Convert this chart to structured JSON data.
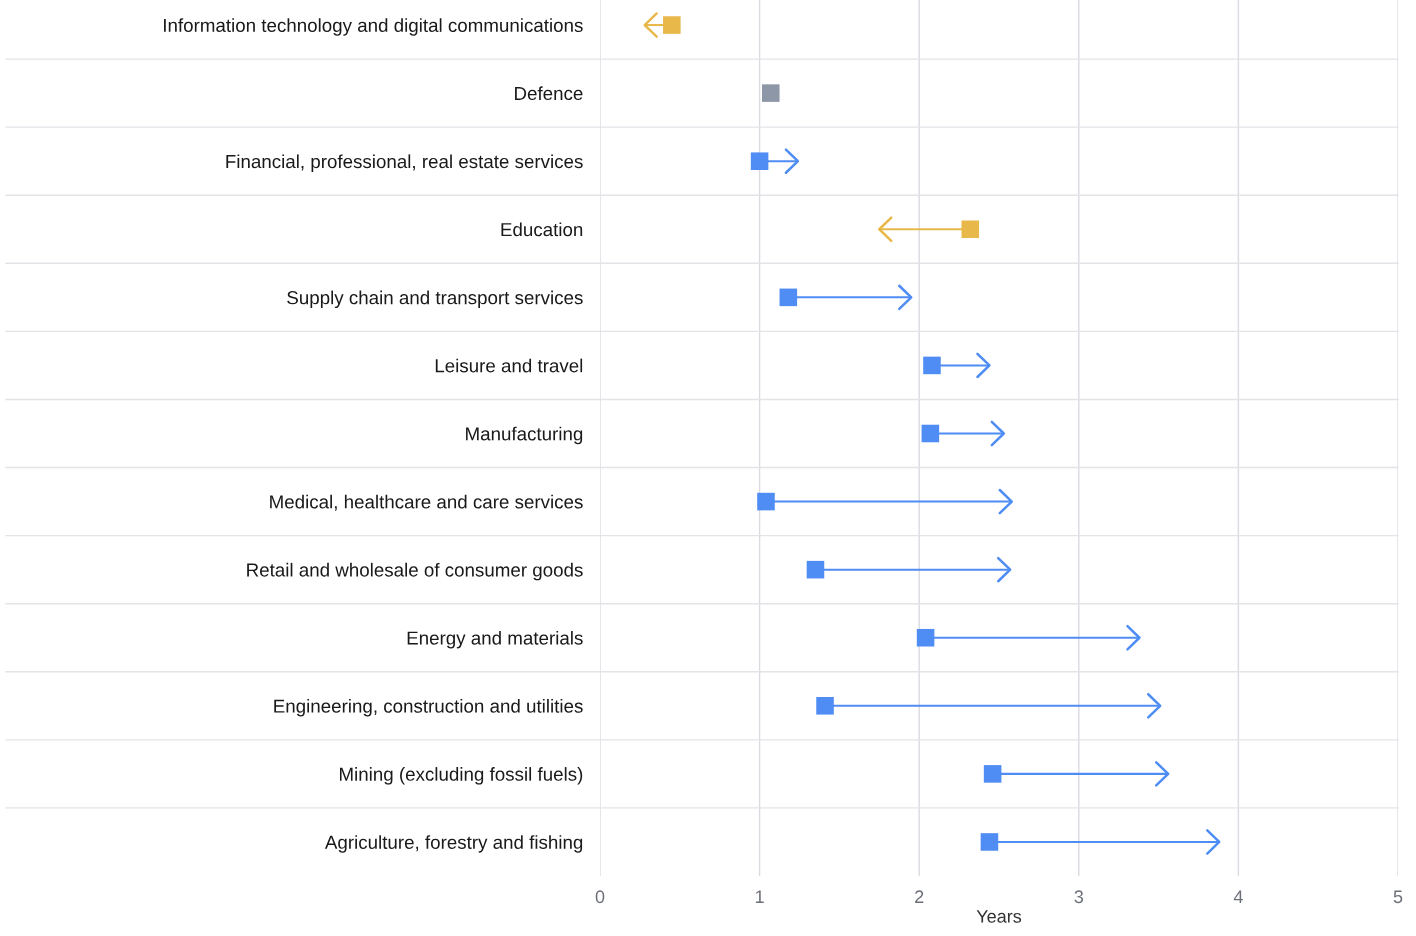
{
  "chart_data": {
    "type": "bar",
    "orientation": "horizontal",
    "grid": true,
    "xlabel": "Years",
    "categories": [
      "Information technology and digital communications",
      "Defence",
      "Financial, professional, real estate services",
      "Education",
      "Supply chain and transport services",
      "Leisure and travel",
      "Manufacturing",
      "Medical, healthcare and care services",
      "Retail and wholesale of consumer goods",
      "Energy and materials",
      "Engineering, construction and utilities",
      "Mining (excluding fossil fuels)",
      "Agriculture, forestry and fishing"
    ],
    "series": [
      {
        "base": [
          0.45,
          null,
          1.0,
          2.32,
          1.18,
          2.08,
          2.07,
          1.04,
          1.35,
          2.04,
          1.41,
          2.46,
          2.44
        ],
        "values": [
          -0.17,
          null,
          0.24,
          -0.57,
          0.77,
          0.36,
          0.46,
          1.54,
          1.22,
          1.34,
          2.1,
          1.1,
          1.44
        ],
        "colors": [
          "#e8b84a",
          "#8e97a8",
          "#4f8df5",
          "#e8b84a",
          "#4f8df5",
          "#4f8df5",
          "#4f8df5",
          "#4f8df5",
          "#4f8df5",
          "#4f8df5",
          "#4f8df5",
          "#4f8df5",
          "#4f8df5"
        ]
      },
      {
        "type": "scatter",
        "marker": "square",
        "values": [
          0.45,
          1.07,
          1.0,
          2.32,
          1.18,
          2.08,
          2.07,
          1.04,
          1.35,
          2.04,
          1.41,
          2.46,
          2.44
        ],
        "colors": [
          "#e8b84a",
          "#8e97a8",
          "#4f8df5",
          "#e8b84a",
          "#4f8df5",
          "#4f8df5",
          "#4f8df5",
          "#4f8df5",
          "#4f8df5",
          "#4f8df5",
          "#4f8df5",
          "#4f8df5",
          "#4f8df5"
        ]
      }
    ],
    "xlim": [
      0,
      5
    ],
    "xticks": [
      0,
      1,
      2,
      3,
      4,
      5
    ]
  }
}
